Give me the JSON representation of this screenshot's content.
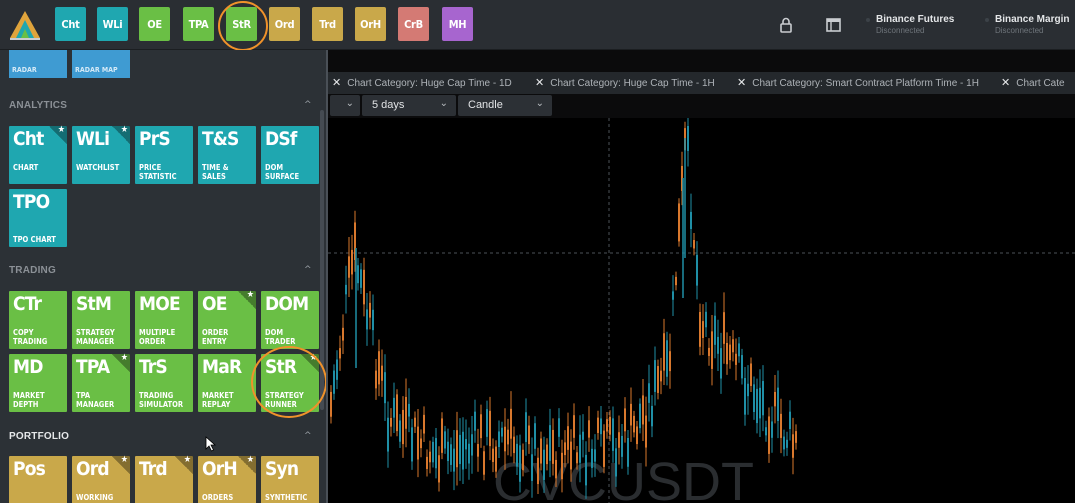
{
  "topbar": {
    "buttons": [
      {
        "label": "Cht",
        "color": "#1fa7b0"
      },
      {
        "label": "WLi",
        "color": "#1fa7b0"
      },
      {
        "label": "OE",
        "color": "#6abf45"
      },
      {
        "label": "TPA",
        "color": "#6abf45"
      },
      {
        "label": "StR",
        "color": "#6abf45"
      },
      {
        "label": "Ord",
        "color": "#c9a84a"
      },
      {
        "label": "Trd",
        "color": "#c9a84a"
      },
      {
        "label": "OrH",
        "color": "#c9a84a"
      },
      {
        "label": "CrB",
        "color": "#d47a74"
      },
      {
        "label": "MH",
        "color": "#a765cf"
      }
    ],
    "highlighted": "StR",
    "icons": [
      "lock-icon",
      "window-icon"
    ],
    "connections": [
      {
        "name": "Binance Futures",
        "status": "Disconnected"
      },
      {
        "name": "Binance Margin",
        "status": "Disconnected"
      }
    ]
  },
  "sidebar": {
    "top_tiles": [
      {
        "label": "RADAR"
      },
      {
        "label": "RADAR MAP"
      }
    ],
    "sections": [
      {
        "title": "ANALYTICS",
        "tiles": [
          {
            "abbr": "Cht",
            "l1": "CHART",
            "l2": "",
            "starred": true
          },
          {
            "abbr": "WLi",
            "l1": "WATCHLIST",
            "l2": "",
            "starred": true
          },
          {
            "abbr": "PrS",
            "l1": "PRICE",
            "l2": "STATISTIC",
            "starred": false
          },
          {
            "abbr": "T&S",
            "l1": "TIME &",
            "l2": "SALES",
            "starred": false
          },
          {
            "abbr": "DSf",
            "l1": "DOM",
            "l2": "SURFACE",
            "starred": false
          },
          {
            "abbr": "TPO",
            "l1": "",
            "l2": "TPO CHART",
            "starred": false
          }
        ]
      },
      {
        "title": "TRADING",
        "tiles": [
          {
            "abbr": "CTr",
            "l1": "COPY",
            "l2": "TRADING",
            "starred": false
          },
          {
            "abbr": "StM",
            "l1": "STRATEGY",
            "l2": "MANAGER",
            "starred": false
          },
          {
            "abbr": "MOE",
            "l1": "MULTIPLE",
            "l2": "ORDER",
            "starred": false
          },
          {
            "abbr": "OE",
            "l1": "ORDER",
            "l2": "ENTRY",
            "starred": true
          },
          {
            "abbr": "DOM",
            "l1": "DOM",
            "l2": "TRADER",
            "starred": false
          },
          {
            "abbr": "MD",
            "l1": "MARKET",
            "l2": "DEPTH",
            "starred": false
          },
          {
            "abbr": "TPA",
            "l1": "TPA",
            "l2": "MANAGER",
            "starred": true
          },
          {
            "abbr": "TrS",
            "l1": "TRADING",
            "l2": "SIMULATOR",
            "starred": false
          },
          {
            "abbr": "MaR",
            "l1": "MARKET",
            "l2": "REPLAY",
            "starred": false
          },
          {
            "abbr": "StR",
            "l1": "STRATEGY",
            "l2": "RUNNER",
            "starred": true
          }
        ]
      },
      {
        "title": "PORTFOLIO",
        "tiles": [
          {
            "abbr": "Pos",
            "l1": "",
            "l2": "",
            "starred": false
          },
          {
            "abbr": "Ord",
            "l1": "WORKING",
            "l2": "",
            "starred": true
          },
          {
            "abbr": "Trd",
            "l1": "",
            "l2": "",
            "starred": true
          },
          {
            "abbr": "OrH",
            "l1": "ORDERS",
            "l2": "",
            "starred": true
          },
          {
            "abbr": "Syn",
            "l1": "SYNTHETIC",
            "l2": "",
            "starred": false
          }
        ]
      }
    ]
  },
  "chart_area": {
    "tabs": [
      "Chart Category: Huge Cap Time - 1D",
      "Chart Category: Huge Cap Time - 1H",
      "Chart Category: Smart Contract Platform Time - 1H",
      "Chart Cate"
    ],
    "period": "5 days",
    "chart_type": "Candle",
    "watermark": "CVCUSDT",
    "colors": {
      "up": "#1f8fa6",
      "down": "#d9782d",
      "crosshair": "#5a5f64"
    }
  }
}
